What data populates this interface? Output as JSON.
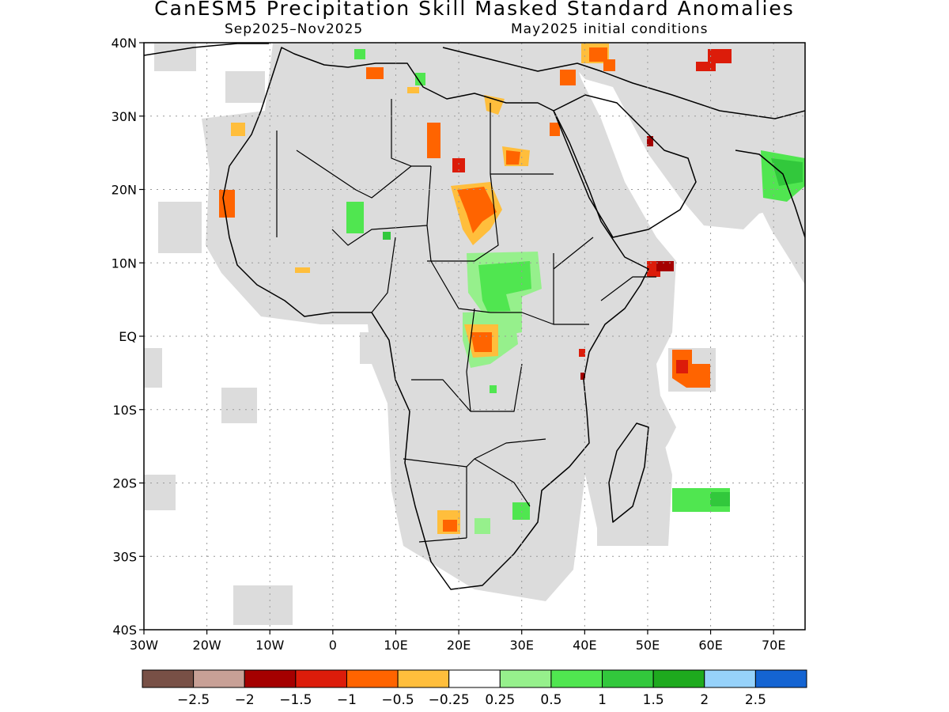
{
  "header": {
    "title": "CanESM5 Precipitation Skill Masked Standard Anomalies",
    "period": "Sep2025–Nov2025",
    "init": "May2025 initial conditions"
  },
  "map": {
    "lon_min": -30,
    "lon_max": 75,
    "lat_min": -40,
    "lat_max": 40,
    "lat_ticks": [
      {
        "value": 40,
        "label": "40N"
      },
      {
        "value": 30,
        "label": "30N"
      },
      {
        "value": 20,
        "label": "20N"
      },
      {
        "value": 10,
        "label": "10N"
      },
      {
        "value": 0,
        "label": "EQ"
      },
      {
        "value": -10,
        "label": "10S"
      },
      {
        "value": -20,
        "label": "20S"
      },
      {
        "value": -30,
        "label": "30S"
      },
      {
        "value": -40,
        "label": "40S"
      }
    ],
    "lon_ticks": [
      {
        "value": -30,
        "label": "30W"
      },
      {
        "value": -20,
        "label": "20W"
      },
      {
        "value": -10,
        "label": "10W"
      },
      {
        "value": 0,
        "label": "0"
      },
      {
        "value": 10,
        "label": "10E"
      },
      {
        "value": 20,
        "label": "20E"
      },
      {
        "value": 30,
        "label": "30E"
      },
      {
        "value": 40,
        "label": "40E"
      },
      {
        "value": 50,
        "label": "50E"
      },
      {
        "value": 60,
        "label": "60E"
      },
      {
        "value": 70,
        "label": "70E"
      }
    ],
    "colors": {
      "masked": "#dcdcdc",
      "neg_1_5": "#a50000",
      "neg_1": "#dc1c0a",
      "neg_0_5": "#ff6400",
      "neg_0_25": "#ffbe3c",
      "pos_0_25": "#96f08c",
      "pos_0_5": "#50e650",
      "pos_1": "#32c83c",
      "pos_1_5": "#1eaa1e"
    },
    "anomaly_patches": [
      {
        "region": "Sahel / Sudan",
        "category": "neg_0_5"
      },
      {
        "region": "Chad / Libya",
        "category": "neg_0_5"
      },
      {
        "region": "Egypt",
        "category": "neg_0_25"
      },
      {
        "region": "West Africa coast",
        "category": "neg_0_5"
      },
      {
        "region": "South Sudan / CAR",
        "category": "pos_0_5"
      },
      {
        "region": "DR Congo",
        "category": "neg_0_5"
      },
      {
        "region": "Somalia",
        "category": "neg_1_5"
      },
      {
        "region": "Western Indian Ocean",
        "category": "neg_0_5"
      },
      {
        "region": "Mascarene Ocean",
        "category": "pos_0_5"
      },
      {
        "region": "Namibia / Botswana",
        "category": "neg_0_25"
      },
      {
        "region": "India",
        "category": "pos_1"
      },
      {
        "region": "Iran",
        "category": "neg_1"
      },
      {
        "region": "Turkey / Levant",
        "category": "neg_0_5"
      }
    ]
  },
  "colorbar": {
    "colors": [
      "#785046",
      "#c8a096",
      "#a50000",
      "#dc1c0a",
      "#ff6400",
      "#ffbe3c",
      "#ffffff",
      "#96f08c",
      "#50e650",
      "#32c83c",
      "#1eaa1e",
      "#96d2fa",
      "#1464d2"
    ],
    "labels": [
      "−2.5",
      "−2",
      "−1.5",
      "−1",
      "−0.5",
      "−0.25",
      "0.25",
      "0.5",
      "1",
      "1.5",
      "2",
      "2.5"
    ]
  }
}
